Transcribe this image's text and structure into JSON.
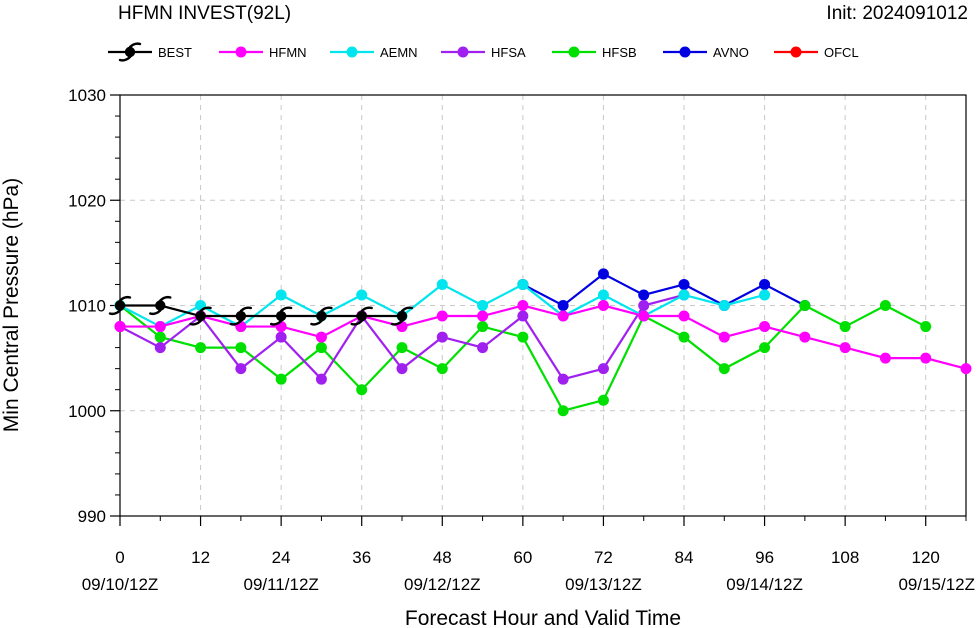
{
  "header": {
    "title": "HFMN INVEST(92L)",
    "init": "Init: 2024091012"
  },
  "chart_data": {
    "type": "line",
    "title": "HFMN INVEST(92L)",
    "xlabel": "Forecast Hour and Valid Time",
    "ylabel": "Min Central Pressure (hPa)",
    "xlim": [
      0,
      126
    ],
    "ylim": [
      990,
      1030
    ],
    "grid": true,
    "legend_position": "top",
    "x_ticks": [
      0,
      12,
      24,
      36,
      48,
      60,
      72,
      84,
      96,
      108,
      120
    ],
    "x_tick_labels": [
      "0",
      "12",
      "24",
      "36",
      "48",
      "60",
      "72",
      "84",
      "96",
      "108",
      "120"
    ],
    "y_ticks": [
      990,
      1000,
      1010,
      1020,
      1030
    ],
    "y_tick_labels": [
      "990",
      "1000",
      "1010",
      "1020",
      "1030"
    ],
    "date_labels": [
      {
        "hour": 0,
        "label": "09/10/12Z"
      },
      {
        "hour": 24,
        "label": "09/11/12Z"
      },
      {
        "hour": 48,
        "label": "09/12/12Z"
      },
      {
        "hour": 72,
        "label": "09/13/12Z"
      },
      {
        "hour": 96,
        "label": "09/14/12Z"
      },
      {
        "hour": 120,
        "label": "09/15/12Z"
      }
    ],
    "series": [
      {
        "name": "BEST",
        "color": "#000000",
        "marker": "hurricane-symbol",
        "x": [
          0,
          6,
          12,
          18,
          24,
          30,
          36,
          42
        ],
        "y": [
          1010,
          1010,
          1009,
          1009,
          1009,
          1009,
          1009,
          1009
        ]
      },
      {
        "name": "HFMN",
        "color": "#ff00ff",
        "marker": "circle",
        "x": [
          0,
          6,
          12,
          18,
          24,
          30,
          36,
          42,
          48,
          54,
          60,
          66,
          72,
          78,
          84,
          90,
          96,
          102,
          108,
          114,
          120,
          126
        ],
        "y": [
          1008,
          1008,
          1009,
          1008,
          1008,
          1007,
          1009,
          1008,
          1009,
          1009,
          1010,
          1009,
          1010,
          1009,
          1009,
          1007,
          1008,
          1007,
          1006,
          1005,
          1005,
          1004
        ]
      },
      {
        "name": "AEMN",
        "color": "#00e5ee",
        "marker": "circle",
        "x": [
          0,
          6,
          12,
          18,
          24,
          30,
          36,
          42,
          48,
          54,
          60,
          66,
          72,
          78,
          84,
          90,
          96
        ],
        "y": [
          1010,
          1008,
          1010,
          1008,
          1011,
          1009,
          1011,
          1009,
          1012,
          1010,
          1012,
          1009,
          1011,
          1009,
          1011,
          1010,
          1011
        ]
      },
      {
        "name": "HFSA",
        "color": "#a020f0",
        "marker": "circle",
        "x": [
          0,
          6,
          12,
          18,
          24,
          30,
          36,
          42,
          48,
          54,
          60,
          66,
          72,
          78,
          84
        ],
        "y": [
          1008,
          1006,
          1009,
          1004,
          1007,
          1003,
          1009,
          1004,
          1007,
          1006,
          1009,
          1003,
          1004,
          1010,
          1011
        ]
      },
      {
        "name": "HFSB",
        "color": "#00e000",
        "marker": "circle",
        "x": [
          0,
          6,
          12,
          18,
          24,
          30,
          36,
          42,
          48,
          54,
          60,
          66,
          72,
          78,
          84,
          90,
          96,
          102,
          108,
          114,
          120
        ],
        "y": [
          1010,
          1007,
          1006,
          1006,
          1003,
          1006,
          1002,
          1006,
          1004,
          1008,
          1007,
          1000,
          1001,
          1009,
          1007,
          1004,
          1006,
          1010,
          1008,
          1010,
          1008
        ]
      },
      {
        "name": "AVNO",
        "color": "#0000e0",
        "marker": "circle",
        "x": [
          60,
          66,
          72,
          78,
          84,
          90,
          96,
          102
        ],
        "y": [
          1012,
          1010,
          1013,
          1011,
          1012,
          1010,
          1012,
          1010
        ]
      },
      {
        "name": "OFCL",
        "color": "#ff0000",
        "marker": "circle",
        "x": [],
        "y": []
      }
    ]
  }
}
